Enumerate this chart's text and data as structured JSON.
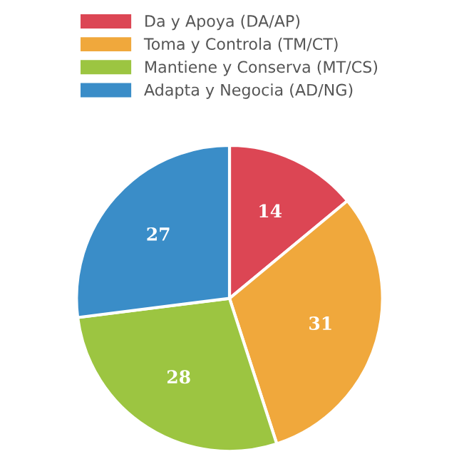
{
  "chart_data": {
    "type": "pie",
    "categories": [
      "Da y Apoya (DA/AP)",
      "Toma y Controla (TM/CT)",
      "Mantiene y Conserva (MT/CS)",
      "Adapta y Negocia (AD/NG)"
    ],
    "values": [
      14,
      31,
      28,
      27
    ],
    "colors": [
      "#dc4654",
      "#f0a83c",
      "#9cc541",
      "#3a8dc8"
    ],
    "data_labels": true,
    "legend": "top"
  }
}
